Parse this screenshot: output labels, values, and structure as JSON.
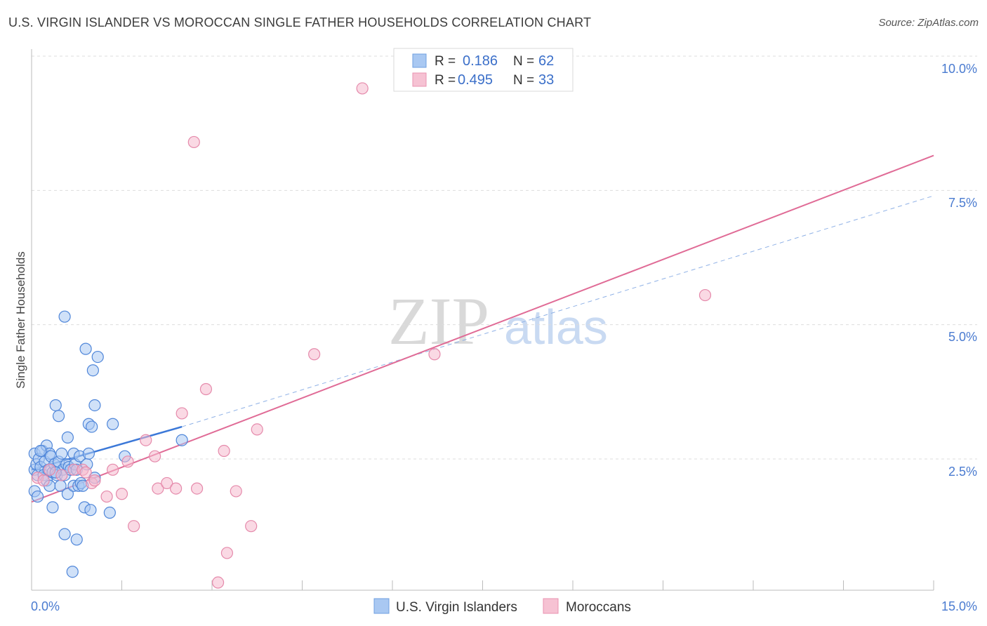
{
  "header": {
    "title": "U.S. VIRGIN ISLANDER VS MOROCCAN SINGLE FATHER HOUSEHOLDS CORRELATION CHART",
    "source": "Source: ZipAtlas.com"
  },
  "watermark": {
    "zip": "ZIP",
    "atlas": "atlas"
  },
  "legend_top": {
    "rows": [
      {
        "r_label": "R =",
        "r_value": "0.186",
        "n_label": "N =",
        "n_value": "62"
      },
      {
        "r_label": "R =",
        "r_value": "0.495",
        "n_label": "N =",
        "n_value": "33"
      }
    ]
  },
  "legend_bottom": {
    "items": [
      {
        "label": "U.S. Virgin Islanders"
      },
      {
        "label": "Moroccans"
      }
    ]
  },
  "colors": {
    "blue": "#3b78d8",
    "blue_fill": "#a9c8f2",
    "pink": "#e06b96",
    "pink_fill": "#f6b9cd",
    "grid": "#dddddd",
    "tick_text": "#4a7bd0"
  },
  "chart_data": {
    "type": "scatter",
    "title": "U.S. VIRGIN ISLANDER VS MOROCCAN SINGLE FATHER HOUSEHOLDS CORRELATION CHART",
    "xlabel": "",
    "ylabel": "Single Father Households",
    "xlim": [
      0,
      15
    ],
    "ylim": [
      0,
      10.5
    ],
    "x_tick_labels": [
      "0.0%",
      "15.0%"
    ],
    "y_ticks": [
      2.5,
      5.0,
      7.5,
      10.0
    ],
    "y_tick_labels": [
      "2.5%",
      "5.0%",
      "7.5%",
      "10.0%"
    ],
    "grid": true,
    "legend": "top-center",
    "series": [
      {
        "name": "U.S. Virgin Islanders",
        "color": "#3b78d8",
        "R": 0.186,
        "N": 62,
        "points": [
          [
            0.05,
            2.6
          ],
          [
            0.05,
            2.3
          ],
          [
            0.05,
            1.9
          ],
          [
            0.08,
            2.4
          ],
          [
            0.1,
            2.2
          ],
          [
            0.1,
            1.8
          ],
          [
            0.12,
            2.5
          ],
          [
            0.15,
            2.35
          ],
          [
            0.18,
            2.65
          ],
          [
            0.2,
            2.2
          ],
          [
            0.22,
            2.45
          ],
          [
            0.25,
            2.1
          ],
          [
            0.25,
            2.75
          ],
          [
            0.28,
            2.3
          ],
          [
            0.3,
            2.6
          ],
          [
            0.3,
            2.0
          ],
          [
            0.32,
            2.55
          ],
          [
            0.35,
            2.25
          ],
          [
            0.35,
            1.6
          ],
          [
            0.38,
            2.4
          ],
          [
            0.4,
            3.5
          ],
          [
            0.42,
            2.2
          ],
          [
            0.45,
            3.3
          ],
          [
            0.45,
            2.45
          ],
          [
            0.48,
            2.0
          ],
          [
            0.5,
            2.6
          ],
          [
            0.52,
            2.3
          ],
          [
            0.55,
            2.2
          ],
          [
            0.55,
            1.1
          ],
          [
            0.58,
            2.4
          ],
          [
            0.6,
            1.85
          ],
          [
            0.6,
            2.9
          ],
          [
            0.62,
            2.35
          ],
          [
            0.65,
            2.3
          ],
          [
            0.68,
            0.4
          ],
          [
            0.7,
            2.6
          ],
          [
            0.7,
            2.0
          ],
          [
            0.72,
            2.4
          ],
          [
            0.75,
            2.3
          ],
          [
            0.75,
            1.0
          ],
          [
            0.78,
            2.0
          ],
          [
            0.8,
            2.55
          ],
          [
            0.82,
            2.05
          ],
          [
            0.85,
            2.0
          ],
          [
            0.88,
            1.6
          ],
          [
            0.9,
            4.55
          ],
          [
            0.92,
            2.4
          ],
          [
            0.95,
            3.15
          ],
          [
            0.95,
            2.6
          ],
          [
            0.98,
            1.55
          ],
          [
            1.0,
            3.1
          ],
          [
            1.02,
            4.15
          ],
          [
            1.05,
            2.15
          ],
          [
            1.05,
            3.5
          ],
          [
            1.1,
            4.4
          ],
          [
            0.55,
            5.15
          ],
          [
            1.3,
            1.5
          ],
          [
            1.35,
            3.15
          ],
          [
            1.55,
            2.55
          ],
          [
            2.5,
            2.85
          ],
          [
            0.4,
            2.25
          ],
          [
            0.15,
            2.65
          ]
        ],
        "trend": {
          "x1": 0.0,
          "y1": 2.3,
          "x2": 2.5,
          "y2": 3.1,
          "dashed_extension_to_x": 15.0,
          "dashed_y_at_end": 7.4
        }
      },
      {
        "name": "Moroccans",
        "color": "#e06b96",
        "R": 0.495,
        "N": 33,
        "points": [
          [
            0.1,
            2.15
          ],
          [
            0.2,
            2.1
          ],
          [
            0.3,
            2.3
          ],
          [
            0.5,
            2.2
          ],
          [
            0.7,
            2.3
          ],
          [
            0.85,
            2.3
          ],
          [
            0.9,
            2.25
          ],
          [
            1.0,
            2.05
          ],
          [
            1.05,
            2.1
          ],
          [
            1.25,
            1.8
          ],
          [
            1.35,
            2.3
          ],
          [
            1.5,
            1.85
          ],
          [
            1.6,
            2.45
          ],
          [
            1.7,
            1.25
          ],
          [
            1.9,
            2.85
          ],
          [
            2.05,
            2.55
          ],
          [
            2.1,
            1.95
          ],
          [
            2.25,
            2.05
          ],
          [
            2.4,
            1.95
          ],
          [
            2.5,
            3.35
          ],
          [
            2.75,
            1.95
          ],
          [
            2.9,
            3.8
          ],
          [
            3.1,
            0.2
          ],
          [
            3.2,
            2.65
          ],
          [
            3.25,
            0.75
          ],
          [
            3.4,
            1.9
          ],
          [
            3.65,
            1.25
          ],
          [
            3.75,
            3.05
          ],
          [
            4.7,
            4.45
          ],
          [
            6.7,
            4.45
          ],
          [
            11.2,
            5.55
          ],
          [
            2.7,
            8.4
          ],
          [
            5.5,
            9.4
          ]
        ],
        "trend": {
          "x1": 0.0,
          "y1": 1.7,
          "x2": 15.0,
          "y2": 8.15
        }
      }
    ]
  }
}
